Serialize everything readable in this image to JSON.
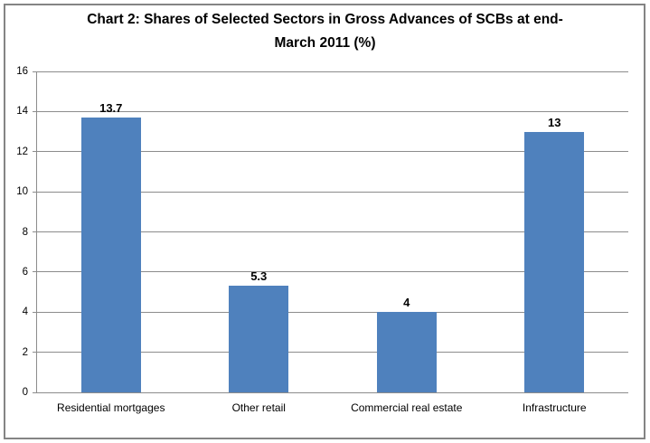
{
  "chart_data": {
    "type": "bar",
    "title": "Chart 2: Shares of Selected Sectors in Gross Advances of SCBs at end-March 2011 (%)",
    "title_lines": [
      "Chart 2: Shares of Selected Sectors in Gross Advances of SCBs at end-",
      "March 2011 (%)"
    ],
    "categories": [
      "Residential mortgages",
      "Other retail",
      "Commercial real estate",
      "Infrastructure"
    ],
    "values": [
      13.7,
      5.3,
      4,
      13
    ],
    "data_labels": [
      "13.7",
      "5.3",
      "4",
      "13"
    ],
    "xlabel": "",
    "ylabel": "",
    "ylim": [
      0,
      16
    ],
    "yticks": [
      0,
      2,
      4,
      6,
      8,
      10,
      12,
      14,
      16
    ],
    "grid": "horizontal",
    "legend": "none",
    "colors": {
      "bar": "#4F81BD",
      "gridline": "#8C8C8C",
      "axis": "#8C8C8C",
      "chart_border": "#848484",
      "text": "#000000",
      "background": "#FFFFFF"
    }
  }
}
